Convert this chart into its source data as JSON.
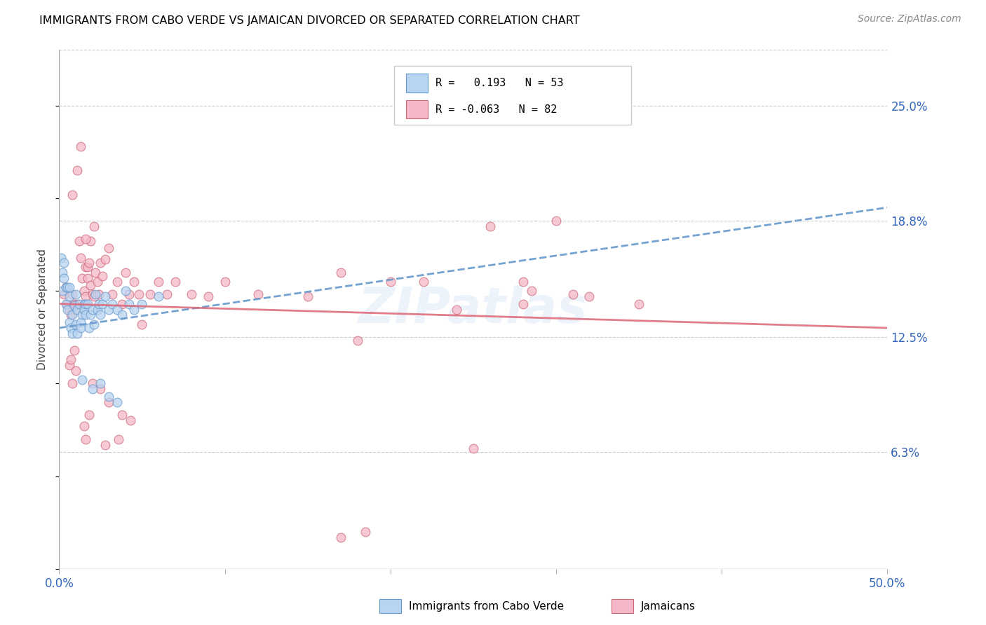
{
  "title": "IMMIGRANTS FROM CABO VERDE VS JAMAICAN DIVORCED OR SEPARATED CORRELATION CHART",
  "source": "Source: ZipAtlas.com",
  "ylabel": "Divorced or Separated",
  "xlim": [
    0.0,
    0.5
  ],
  "ylim": [
    0.0,
    0.28
  ],
  "xticks": [
    0.0,
    0.1,
    0.2,
    0.3,
    0.4,
    0.5
  ],
  "xtick_labels": [
    "0.0%",
    "",
    "",
    "",
    "",
    "50.0%"
  ],
  "ytick_labels_right": [
    "25.0%",
    "18.8%",
    "12.5%",
    "6.3%"
  ],
  "ytick_vals_right": [
    0.25,
    0.188,
    0.125,
    0.063
  ],
  "blue_fill": "#b8d4f0",
  "blue_edge": "#6699cc",
  "pink_fill": "#f5b8c8",
  "pink_edge": "#cc6677",
  "blue_line_color": "#6699cc",
  "pink_line_color": "#dd6677",
  "watermark": "ZIPatlas",
  "cabo_verde_points": [
    [
      0.001,
      0.168
    ],
    [
      0.002,
      0.16
    ],
    [
      0.003,
      0.165
    ],
    [
      0.002,
      0.15
    ],
    [
      0.003,
      0.157
    ],
    [
      0.004,
      0.152
    ],
    [
      0.005,
      0.152
    ],
    [
      0.004,
      0.143
    ],
    [
      0.005,
      0.14
    ],
    [
      0.006,
      0.147
    ],
    [
      0.006,
      0.152
    ],
    [
      0.006,
      0.133
    ],
    [
      0.007,
      0.13
    ],
    [
      0.008,
      0.137
    ],
    [
      0.009,
      0.142
    ],
    [
      0.008,
      0.127
    ],
    [
      0.01,
      0.132
    ],
    [
      0.01,
      0.148
    ],
    [
      0.011,
      0.14
    ],
    [
      0.012,
      0.143
    ],
    [
      0.011,
      0.127
    ],
    [
      0.013,
      0.133
    ],
    [
      0.013,
      0.13
    ],
    [
      0.014,
      0.137
    ],
    [
      0.015,
      0.143
    ],
    [
      0.015,
      0.14
    ],
    [
      0.016,
      0.143
    ],
    [
      0.016,
      0.137
    ],
    [
      0.017,
      0.143
    ],
    [
      0.018,
      0.13
    ],
    [
      0.019,
      0.137
    ],
    [
      0.02,
      0.14
    ],
    [
      0.021,
      0.132
    ],
    [
      0.022,
      0.148
    ],
    [
      0.023,
      0.14
    ],
    [
      0.024,
      0.143
    ],
    [
      0.025,
      0.137
    ],
    [
      0.026,
      0.143
    ],
    [
      0.028,
      0.147
    ],
    [
      0.03,
      0.14
    ],
    [
      0.032,
      0.143
    ],
    [
      0.035,
      0.14
    ],
    [
      0.038,
      0.137
    ],
    [
      0.04,
      0.15
    ],
    [
      0.042,
      0.143
    ],
    [
      0.045,
      0.14
    ],
    [
      0.05,
      0.143
    ],
    [
      0.014,
      0.102
    ],
    [
      0.02,
      0.097
    ],
    [
      0.025,
      0.1
    ],
    [
      0.03,
      0.093
    ],
    [
      0.035,
      0.09
    ],
    [
      0.06,
      0.147
    ]
  ],
  "jamaican_points": [
    [
      0.003,
      0.148
    ],
    [
      0.004,
      0.152
    ],
    [
      0.005,
      0.143
    ],
    [
      0.006,
      0.14
    ],
    [
      0.007,
      0.137
    ],
    [
      0.008,
      0.148
    ],
    [
      0.009,
      0.143
    ],
    [
      0.01,
      0.14
    ],
    [
      0.011,
      0.143
    ],
    [
      0.012,
      0.177
    ],
    [
      0.013,
      0.168
    ],
    [
      0.014,
      0.157
    ],
    [
      0.015,
      0.15
    ],
    [
      0.016,
      0.147
    ],
    [
      0.016,
      0.163
    ],
    [
      0.017,
      0.157
    ],
    [
      0.017,
      0.163
    ],
    [
      0.018,
      0.165
    ],
    [
      0.019,
      0.153
    ],
    [
      0.02,
      0.148
    ],
    [
      0.021,
      0.147
    ],
    [
      0.022,
      0.16
    ],
    [
      0.023,
      0.155
    ],
    [
      0.024,
      0.148
    ],
    [
      0.025,
      0.165
    ],
    [
      0.026,
      0.158
    ],
    [
      0.028,
      0.167
    ],
    [
      0.03,
      0.173
    ],
    [
      0.032,
      0.148
    ],
    [
      0.035,
      0.155
    ],
    [
      0.038,
      0.143
    ],
    [
      0.04,
      0.16
    ],
    [
      0.042,
      0.148
    ],
    [
      0.045,
      0.155
    ],
    [
      0.048,
      0.148
    ],
    [
      0.05,
      0.132
    ],
    [
      0.055,
      0.148
    ],
    [
      0.06,
      0.155
    ],
    [
      0.065,
      0.148
    ],
    [
      0.07,
      0.155
    ],
    [
      0.08,
      0.148
    ],
    [
      0.09,
      0.147
    ],
    [
      0.1,
      0.155
    ],
    [
      0.12,
      0.148
    ],
    [
      0.15,
      0.147
    ],
    [
      0.17,
      0.16
    ],
    [
      0.2,
      0.155
    ],
    [
      0.013,
      0.228
    ],
    [
      0.26,
      0.185
    ],
    [
      0.3,
      0.188
    ],
    [
      0.008,
      0.202
    ],
    [
      0.011,
      0.215
    ],
    [
      0.02,
      0.1
    ],
    [
      0.025,
      0.097
    ],
    [
      0.03,
      0.09
    ],
    [
      0.18,
      0.123
    ],
    [
      0.028,
      0.067
    ],
    [
      0.28,
      0.143
    ],
    [
      0.038,
      0.083
    ],
    [
      0.043,
      0.08
    ],
    [
      0.036,
      0.07
    ],
    [
      0.25,
      0.065
    ],
    [
      0.24,
      0.14
    ],
    [
      0.31,
      0.148
    ],
    [
      0.32,
      0.147
    ],
    [
      0.28,
      0.155
    ],
    [
      0.35,
      0.143
    ],
    [
      0.285,
      0.15
    ],
    [
      0.22,
      0.155
    ],
    [
      0.019,
      0.177
    ],
    [
      0.021,
      0.185
    ],
    [
      0.016,
      0.178
    ],
    [
      0.17,
      0.017
    ],
    [
      0.185,
      0.02
    ],
    [
      0.015,
      0.077
    ],
    [
      0.018,
      0.083
    ],
    [
      0.016,
      0.07
    ],
    [
      0.006,
      0.11
    ],
    [
      0.007,
      0.113
    ],
    [
      0.008,
      0.1
    ],
    [
      0.009,
      0.118
    ],
    [
      0.01,
      0.107
    ]
  ],
  "blue_trend_x": [
    0.0,
    0.5
  ],
  "blue_trend_y": [
    0.13,
    0.195
  ],
  "pink_trend_x": [
    0.0,
    0.5
  ],
  "pink_trend_y": [
    0.143,
    0.13
  ]
}
